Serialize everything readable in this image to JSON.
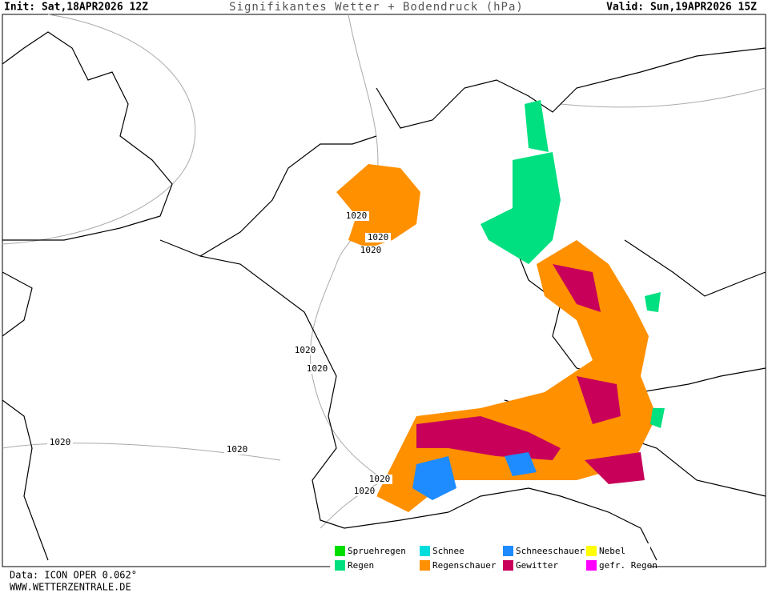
{
  "header": {
    "init": "Init: Sat,18APR2026 12Z",
    "title": "Signifikantes Wetter + Bodendruck (hPa)",
    "valid": "Valid: Sun,19APR2026 15Z"
  },
  "isobar_labels": [
    "1020",
    "1020",
    "1020",
    "1020",
    "1020",
    "1020",
    "1020",
    "1020",
    "1020"
  ],
  "legend": [
    {
      "label": "Spruehregen",
      "color": "#00dd00"
    },
    {
      "label": "Schnee",
      "color": "#00dddd"
    },
    {
      "label": "Schneeschauer",
      "color": "#1e8cff"
    },
    {
      "label": "Nebel",
      "color": "#ffff00"
    },
    {
      "label": "Regen",
      "color": "#00e080"
    },
    {
      "label": "Regenschauer",
      "color": "#ff9000"
    },
    {
      "label": "Gewitter",
      "color": "#c8005a"
    },
    {
      "label": "gefr. Regen",
      "color": "#ff00ff"
    }
  ],
  "footer": {
    "data": "Data: ICON OPER 0.062°",
    "site": "WWW.WETTERZENTRALE.DE"
  }
}
